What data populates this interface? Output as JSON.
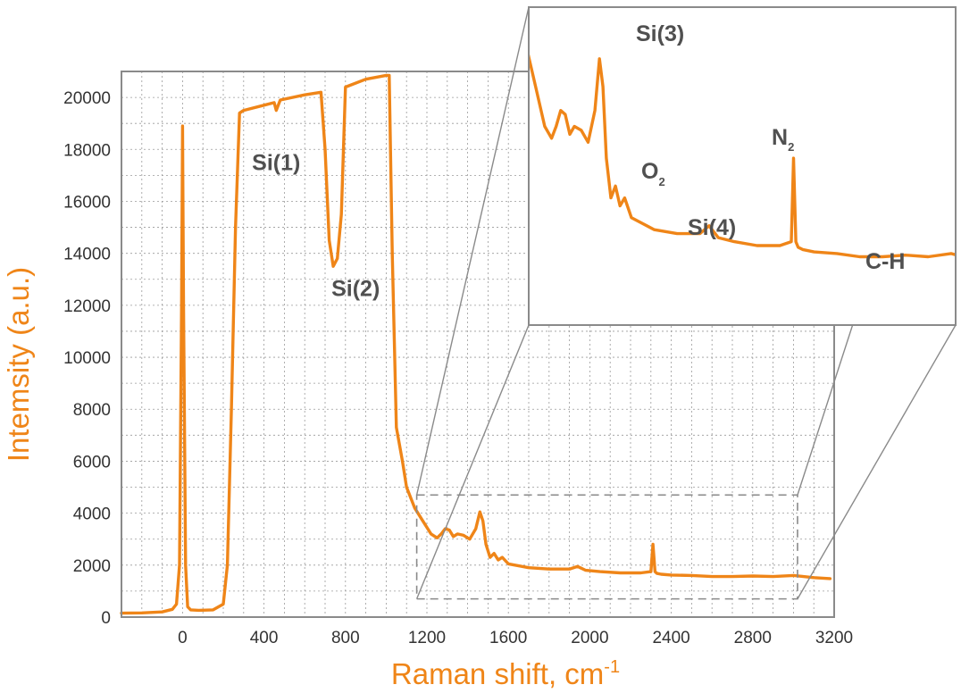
{
  "chart_data": {
    "type": "line",
    "title": "",
    "xlabel": "Raman shift, cm",
    "xlabel_sup": "-1",
    "ylabel": "Intemsity (a.u.)",
    "xlim": [
      -300,
      3200
    ],
    "ylim": [
      0,
      21000
    ],
    "x_ticks": [
      0,
      400,
      800,
      1200,
      1600,
      2000,
      2400,
      2800,
      3200
    ],
    "y_ticks": [
      0,
      2000,
      4000,
      6000,
      8000,
      10000,
      12000,
      14000,
      16000,
      18000,
      20000
    ],
    "grid": true,
    "colors": {
      "line": "#ef8518",
      "frame": "#8a8a8a",
      "grid": "#9a9a9a",
      "axis_title": "#ef8518",
      "label": "#505050"
    },
    "series": [
      {
        "x": [
          -300,
          -200,
          -100,
          -50,
          -30,
          -15,
          -5,
          0,
          5,
          15,
          25,
          40,
          80,
          150,
          200,
          220,
          240,
          260,
          280,
          300,
          400,
          450,
          460,
          480,
          600,
          680,
          700,
          720,
          740,
          760,
          780,
          800,
          900,
          1000,
          1015,
          1030,
          1050,
          1080,
          1100,
          1140,
          1180,
          1220,
          1250,
          1270,
          1290,
          1310,
          1330,
          1350,
          1380,
          1410,
          1440,
          1460,
          1475,
          1490,
          1510,
          1530,
          1550,
          1570,
          1600,
          1700,
          1800,
          1900,
          1940,
          1980,
          2050,
          2150,
          2250,
          2300,
          2310,
          2320,
          2330,
          2350,
          2400,
          2500,
          2600,
          2700,
          2800,
          2900,
          3000,
          3100,
          3180
        ],
        "y": [
          150,
          160,
          200,
          300,
          500,
          2000,
          12000,
          18900,
          12000,
          2000,
          400,
          280,
          260,
          280,
          500,
          2000,
          8000,
          15000,
          19400,
          19500,
          19700,
          19800,
          19500,
          19900,
          20100,
          20200,
          18000,
          14500,
          13500,
          13800,
          15500,
          20400,
          20700,
          20850,
          20850,
          14000,
          7300,
          6000,
          5000,
          4200,
          3700,
          3200,
          3050,
          3200,
          3400,
          3350,
          3100,
          3200,
          3150,
          3000,
          3400,
          4050,
          3700,
          2800,
          2300,
          2450,
          2200,
          2300,
          2050,
          1900,
          1850,
          1850,
          1950,
          1800,
          1750,
          1700,
          1700,
          1750,
          2800,
          1750,
          1680,
          1650,
          1620,
          1600,
          1560,
          1560,
          1580,
          1560,
          1600,
          1520,
          1480
        ]
      }
    ],
    "zoom_box": {
      "x_min": 1150,
      "x_max": 3020,
      "y_min": 700,
      "y_max": 4700
    },
    "annotations": [
      {
        "text": "Si(1)",
        "x": 460,
        "y": 17200
      },
      {
        "text": "Si(2)",
        "x": 850,
        "y": 12350
      }
    ],
    "inset": {
      "description": "magnified view of the dashed region",
      "annotations": [
        {
          "text": "Si(3)"
        },
        {
          "text": "O",
          "sub": "2"
        },
        {
          "text": "Si(4)"
        },
        {
          "text": "N",
          "sub": "2"
        },
        {
          "text": "C-H"
        }
      ]
    }
  }
}
